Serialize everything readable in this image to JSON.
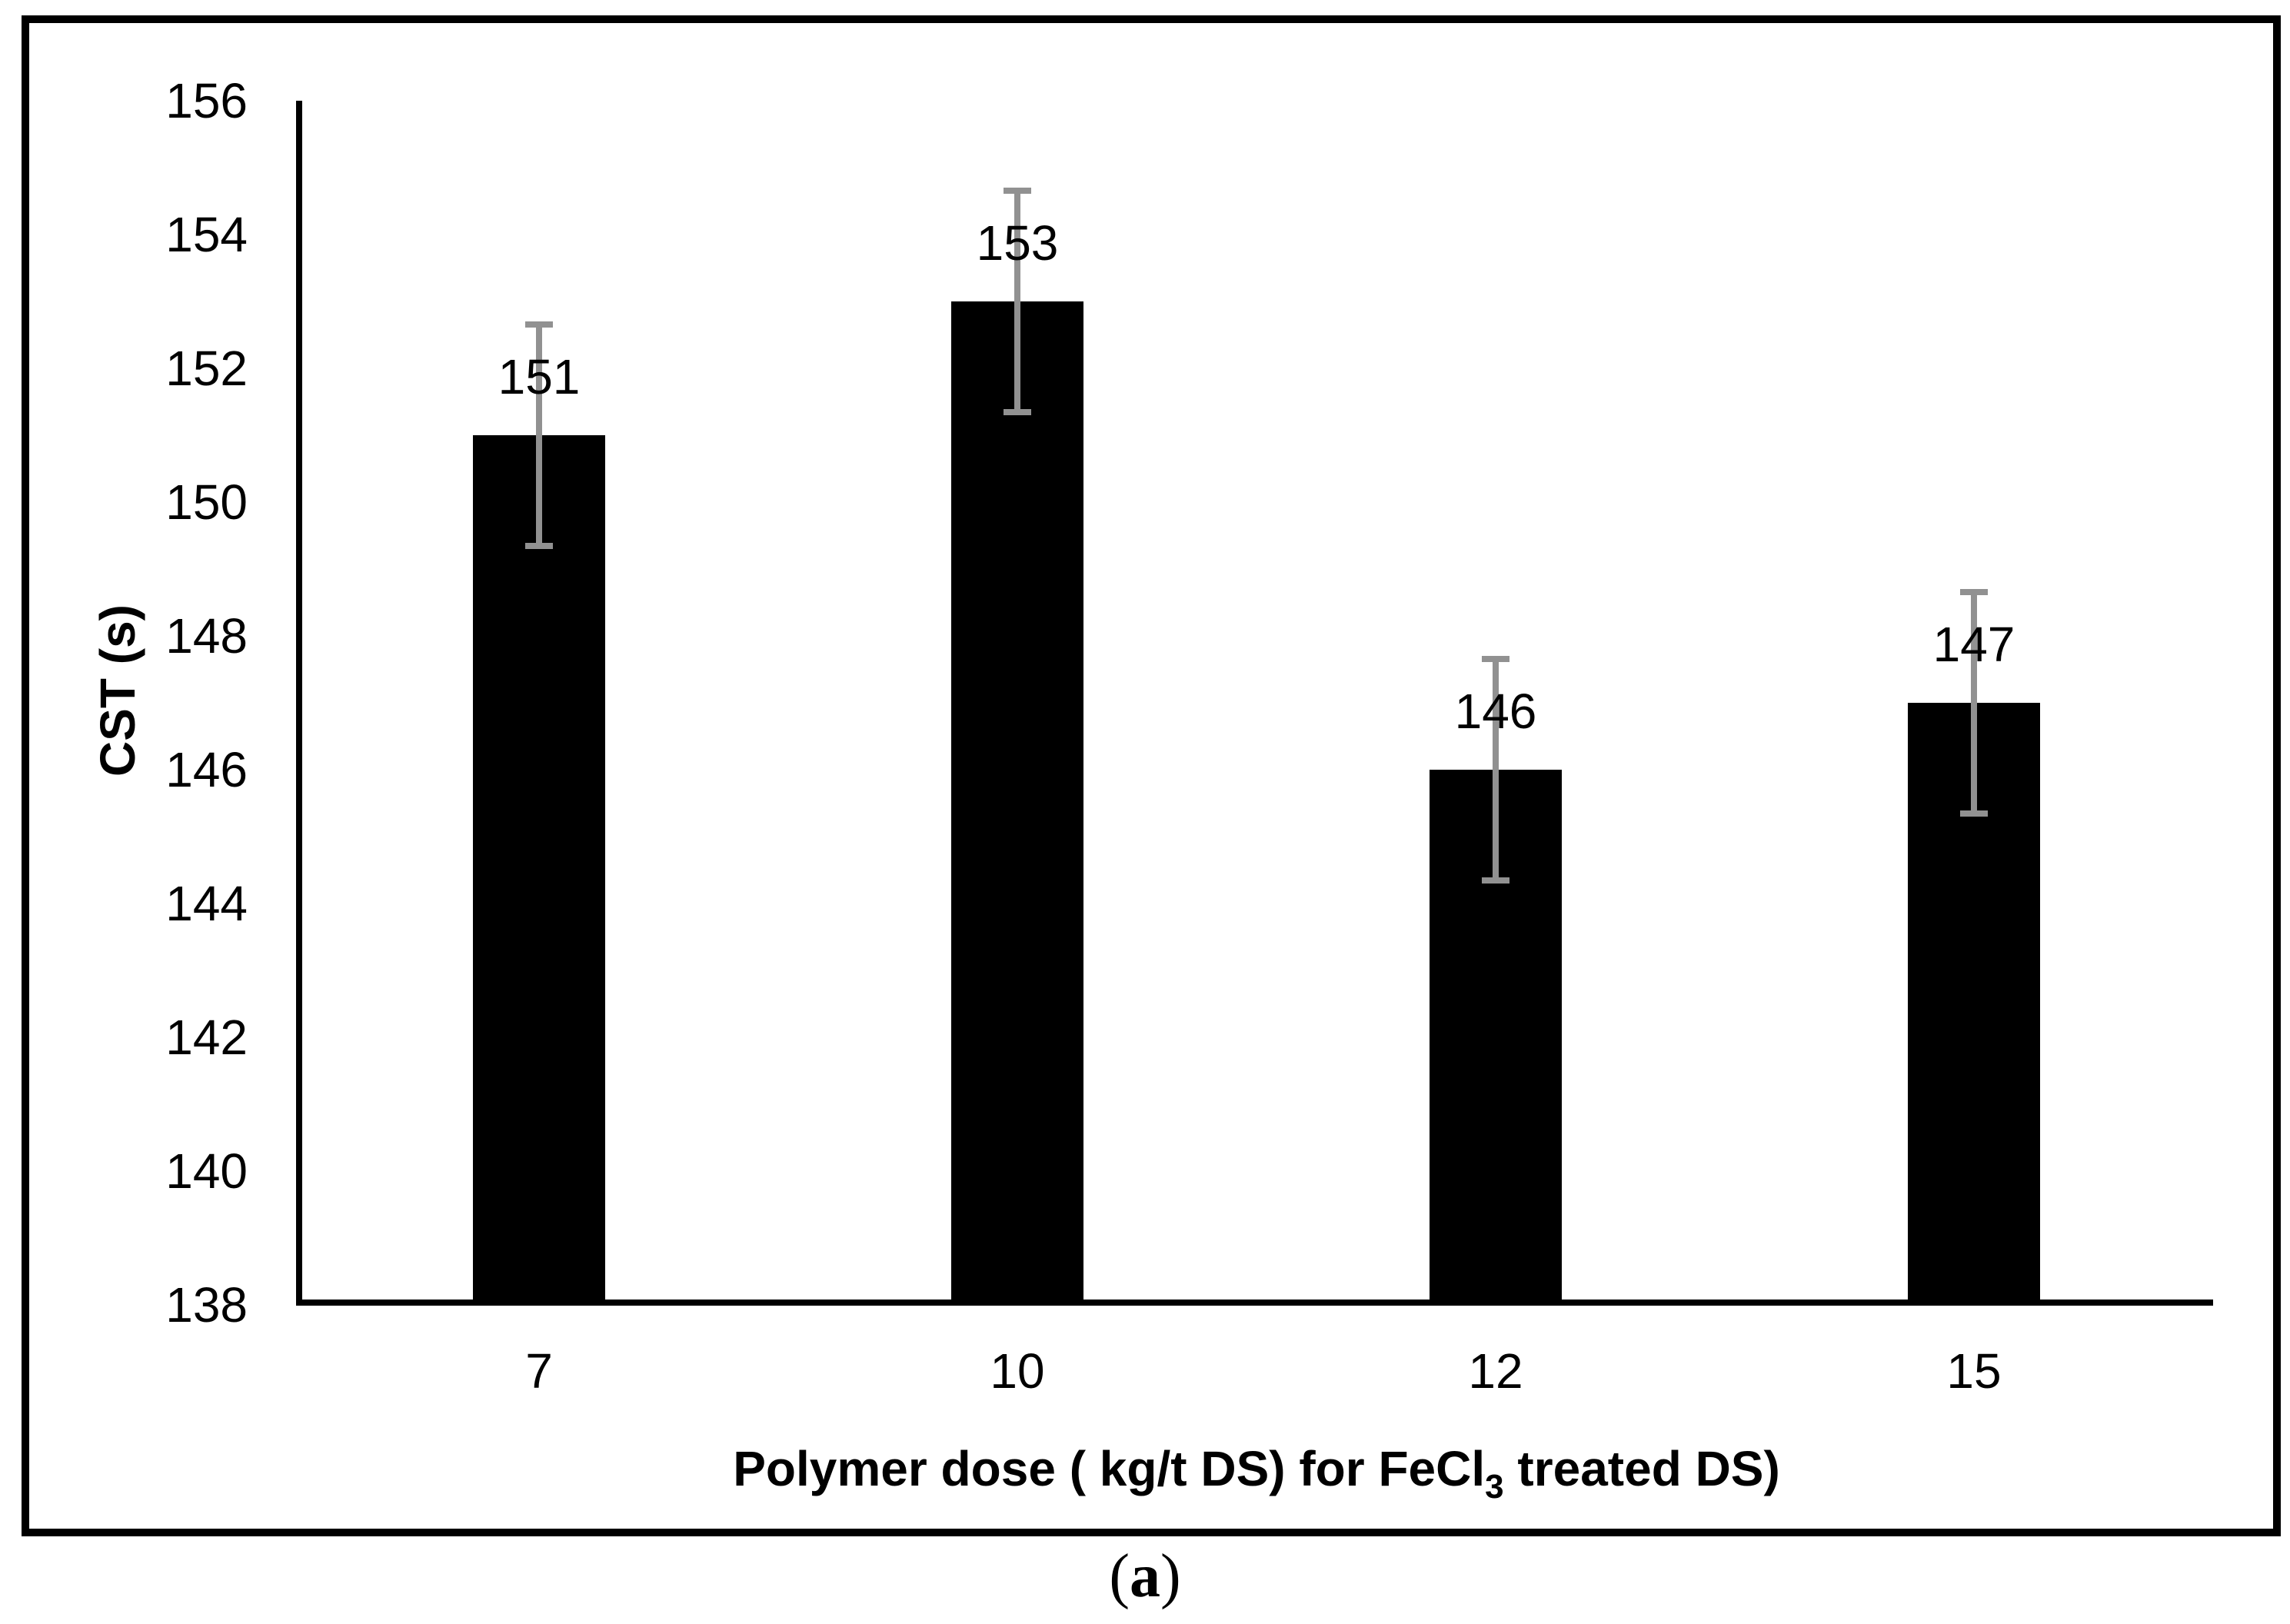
{
  "chart_data": {
    "type": "bar",
    "title": "",
    "ylabel": "CST (s)",
    "xlabel": "Polymer dose ( kg/t DS) for FeCl3 treated DS)",
    "xlabel_parts": {
      "pre": "Polymer dose ( kg/t DS) for FeCl",
      "sub": "3",
      "post": " treated DS)"
    },
    "categories": [
      "7",
      "10",
      "12",
      "15"
    ],
    "values": [
      151,
      153,
      146,
      147
    ],
    "data_labels": [
      "151",
      "153",
      "146",
      "147"
    ],
    "errors": [
      1.65,
      1.65,
      1.65,
      1.65
    ],
    "ylim": [
      138,
      156
    ],
    "ytick_step": 2,
    "yticks": [
      156,
      154,
      152,
      150,
      148,
      146,
      144,
      142,
      140,
      138
    ],
    "grid": false,
    "legend": null,
    "bar_color": "#000000",
    "error_bar_color": "#919191",
    "text_color": "#000000"
  },
  "caption": {
    "open": "(",
    "letter": "a",
    "close": ")"
  }
}
